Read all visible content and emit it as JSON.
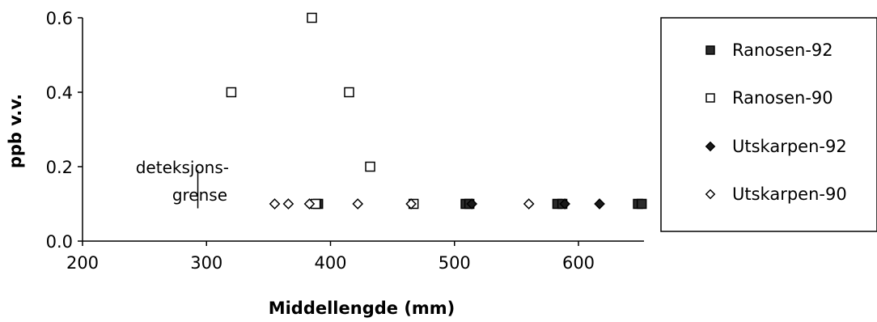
{
  "chart_data": {
    "type": "scatter",
    "xlabel": "Middellengde (mm)",
    "ylabel": "ppb v.v.",
    "xlim": [
      200,
      650
    ],
    "ylim": [
      0,
      0.6
    ],
    "xticks": [
      "200",
      "300",
      "400",
      "500",
      "600"
    ],
    "yticks": [
      "0.0",
      "0.2",
      "0.4",
      "0.6"
    ],
    "grid": false,
    "legend_position": "right",
    "series": [
      {
        "name": "Ranosen-92",
        "marker": "filled-square",
        "points": [
          {
            "x": 390,
            "y": 0.1
          },
          {
            "x": 509,
            "y": 0.1
          },
          {
            "x": 512,
            "y": 0.1
          },
          {
            "x": 583,
            "y": 0.1
          },
          {
            "x": 587,
            "y": 0.1
          },
          {
            "x": 648,
            "y": 0.1
          },
          {
            "x": 651,
            "y": 0.1
          }
        ]
      },
      {
        "name": "Ranosen-90",
        "marker": "open-square",
        "points": [
          {
            "x": 320,
            "y": 0.4
          },
          {
            "x": 385,
            "y": 0.6
          },
          {
            "x": 415,
            "y": 0.4
          },
          {
            "x": 432,
            "y": 0.2
          },
          {
            "x": 388,
            "y": 0.1
          },
          {
            "x": 467,
            "y": 0.1
          }
        ]
      },
      {
        "name": "Utskarpen-92",
        "marker": "filled-diamond",
        "points": [
          {
            "x": 514,
            "y": 0.1
          },
          {
            "x": 589,
            "y": 0.1
          },
          {
            "x": 617,
            "y": 0.1
          }
        ]
      },
      {
        "name": "Utskarpen-90",
        "marker": "open-diamond",
        "points": [
          {
            "x": 355,
            "y": 0.1
          },
          {
            "x": 366,
            "y": 0.1
          },
          {
            "x": 383,
            "y": 0.1
          },
          {
            "x": 422,
            "y": 0.1
          },
          {
            "x": 465,
            "y": 0.1
          },
          {
            "x": 560,
            "y": 0.1
          }
        ]
      }
    ],
    "annotation": {
      "lines": [
        "deteksjons-",
        "grense"
      ],
      "x": 293,
      "y_from": 0.088,
      "y_to": 0.19
    }
  }
}
